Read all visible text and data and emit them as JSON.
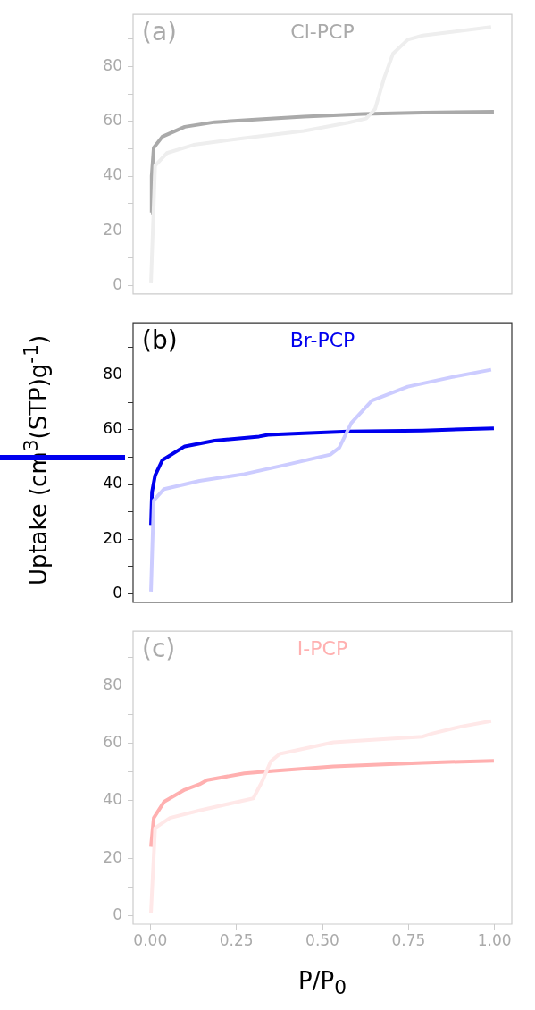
{
  "chart_data": [
    {
      "type": "line",
      "title": "Cl-PCP",
      "annotations": [
        "(a)"
      ],
      "xlim": [
        -0.05,
        1.05
      ],
      "xticks": [
        0,
        0.25,
        0.5,
        0.75,
        1
      ],
      "ylim": [
        -3,
        99
      ],
      "yticks": [
        0,
        {
          "value": 10,
          "label": null
        },
        20,
        {
          "value": 30,
          "label": null
        },
        40,
        {
          "value": 50,
          "label": null
        },
        60,
        {
          "value": 70,
          "label": null
        },
        80,
        {
          "value": 90,
          "label": null
        }
      ],
      "grid": false,
      "tick_labels": "y",
      "series": [
        {
          "color": "#eeeeee",
          "x": [
            0.002,
            0.014,
            0.048,
            0.126,
            0.273,
            0.446,
            0.575,
            0.627,
            0.653,
            0.679,
            0.705,
            0.748,
            0.791,
            0.99
          ],
          "values": [
            0.9,
            43.8,
            48.4,
            51.4,
            53.9,
            56.5,
            59.5,
            61,
            64.5,
            75.7,
            84.7,
            89.8,
            91.3,
            94.4
          ]
        },
        {
          "color": "#aaaaaa",
          "x": [
            0.002,
            0.004,
            0.01,
            0.035,
            0.1,
            0.187,
            0.316,
            0.446,
            0.618,
            0.79,
            0.998
          ],
          "values": [
            26.7,
            40,
            50.4,
            54.4,
            58,
            59.7,
            60.7,
            61.7,
            62.7,
            63.2,
            63.5
          ]
        }
      ]
    },
    {
      "type": "line",
      "title": "Br-PCP",
      "ylabel": "Uptake (cm$^{3}$(STP)g$^{-1}$)",
      "annotations": [
        "(b)"
      ],
      "xlim": [
        -0.05,
        1.05
      ],
      "xticks": [
        0,
        0.25,
        0.5,
        0.75,
        1
      ],
      "ylim": [
        -3,
        99
      ],
      "yticks": [
        0,
        {
          "value": 10,
          "label": null
        },
        20,
        {
          "value": 30,
          "label": null
        },
        40,
        {
          "value": 50,
          "label": null
        },
        60,
        {
          "value": 70,
          "label": null
        },
        80,
        {
          "value": 90,
          "label": null
        }
      ],
      "grid": false,
      "tick_labels": "y",
      "series": [
        {
          "color": "#ccccff",
          "x": [
            0.002,
            0.01,
            0.04,
            0.143,
            0.273,
            0.402,
            0.523,
            0.549,
            0.584,
            0.644,
            0.748,
            0.877,
            0.99
          ],
          "values": [
            0.9,
            34.2,
            38.3,
            41.3,
            43.8,
            47.4,
            50.9,
            53.4,
            62.5,
            70.6,
            75.7,
            79.2,
            81.9
          ]
        },
        {
          "color": "#0000ee",
          "x": [
            0.002,
            0.005,
            0.014,
            0.035,
            0.1,
            0.187,
            0.316,
            0.342,
            0.446,
            0.575,
            0.791,
            0.998
          ],
          "values": [
            25.2,
            37.3,
            43.3,
            48.9,
            53.9,
            56,
            57.5,
            58.1,
            58.7,
            59.3,
            59.7,
            60.5
          ]
        }
      ]
    },
    {
      "type": "line",
      "title": "I-PCP",
      "xlabel": "P/P$_{0}$",
      "annotations": [
        "(c)"
      ],
      "xlim": [
        -0.05,
        1.05
      ],
      "xticks": [
        {
          "value": 0,
          "label": "0.00"
        },
        0.25,
        {
          "value": 0.5,
          "label": "0.50"
        },
        0.75,
        {
          "value": 1,
          "label": "1.00"
        }
      ],
      "ylim": [
        -3,
        99
      ],
      "yticks": [
        0,
        {
          "value": 10,
          "label": null
        },
        20,
        {
          "value": 30,
          "label": null
        },
        40,
        {
          "value": 50,
          "label": null
        },
        60,
        {
          "value": 70,
          "label": null
        },
        80,
        {
          "value": 90,
          "label": null
        }
      ],
      "grid": false,
      "series": [
        {
          "color": "#ffe8e8",
          "x": [
            0.002,
            0.014,
            0.057,
            0.143,
            0.299,
            0.325,
            0.35,
            0.376,
            0.532,
            0.791,
            0.817,
            0.903,
            0.99
          ],
          "values": [
            1,
            30.5,
            34,
            36.6,
            40.8,
            46.7,
            53.7,
            56.3,
            60.3,
            62.3,
            63.3,
            65.8,
            67.7
          ]
        },
        {
          "color": "#ffb0b0",
          "x": [
            0.002,
            0.01,
            0.04,
            0.1,
            0.143,
            0.165,
            0.273,
            0.359,
            0.532,
            0.791,
            0.998
          ],
          "values": [
            23.9,
            34,
            39.6,
            43.8,
            45.7,
            47.2,
            49.5,
            50.4,
            51.9,
            53.2,
            53.9
          ]
        }
      ]
    }
  ]
}
